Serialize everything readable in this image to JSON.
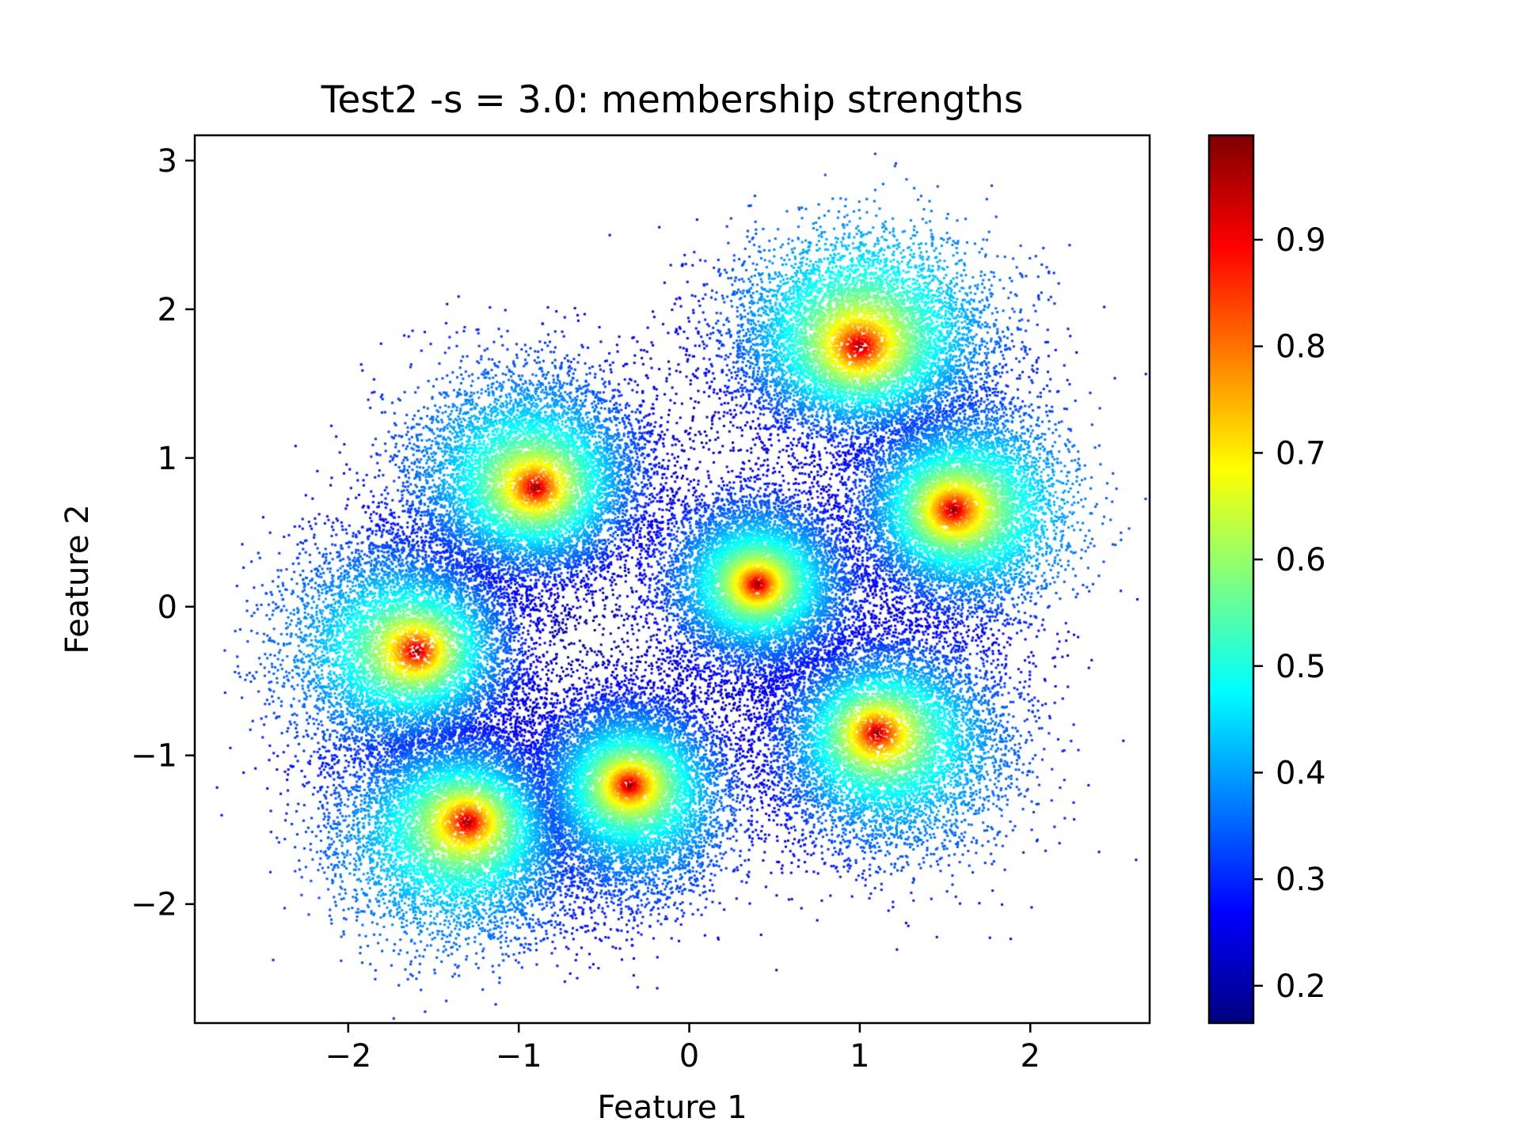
{
  "chart_data": {
    "type": "scatter",
    "title": "Test2 -s = 3.0: membership strengths",
    "xlabel": "Feature 1",
    "ylabel": "Feature 2",
    "xlim": [
      -2.9,
      2.7
    ],
    "ylim": [
      -2.8,
      3.17
    ],
    "xticks": [
      -2,
      -1,
      0,
      1,
      2
    ],
    "xtick_labels": [
      "−2",
      "−1",
      "0",
      "1",
      "2"
    ],
    "yticks": [
      -2,
      -1,
      0,
      1,
      2,
      3
    ],
    "ytick_labels": [
      "−2",
      "−1",
      "0",
      "1",
      "2",
      "3"
    ],
    "grid": false,
    "colormap": "jet",
    "color_value": "membership strength",
    "colorbar": {
      "vmin": 0.165,
      "vmax": 0.998,
      "ticks": [
        0.2,
        0.3,
        0.4,
        0.5,
        0.6,
        0.7,
        0.8,
        0.9
      ],
      "tick_labels": [
        "0.2",
        "0.3",
        "0.4",
        "0.5",
        "0.6",
        "0.7",
        "0.8",
        "0.9"
      ]
    },
    "clusters": [
      {
        "center_x": -1.6,
        "center_y": -0.3,
        "spread_x": 0.36,
        "spread_y": 0.42
      },
      {
        "center_x": -0.9,
        "center_y": 0.8,
        "spread_x": 0.36,
        "spread_y": 0.38
      },
      {
        "center_x": 1.0,
        "center_y": 1.75,
        "spread_x": 0.38,
        "spread_y": 0.34
      },
      {
        "center_x": 1.55,
        "center_y": 0.65,
        "spread_x": 0.3,
        "spread_y": 0.34
      },
      {
        "center_x": 1.1,
        "center_y": -0.85,
        "spread_x": 0.38,
        "spread_y": 0.38
      },
      {
        "center_x": -1.3,
        "center_y": -1.45,
        "spread_x": 0.36,
        "spread_y": 0.36
      },
      {
        "center_x": -0.35,
        "center_y": -1.2,
        "spread_x": 0.28,
        "spread_y": 0.36
      },
      {
        "center_x": 0.4,
        "center_y": 0.15,
        "spread_x": 0.26,
        "spread_y": 0.3
      }
    ]
  }
}
